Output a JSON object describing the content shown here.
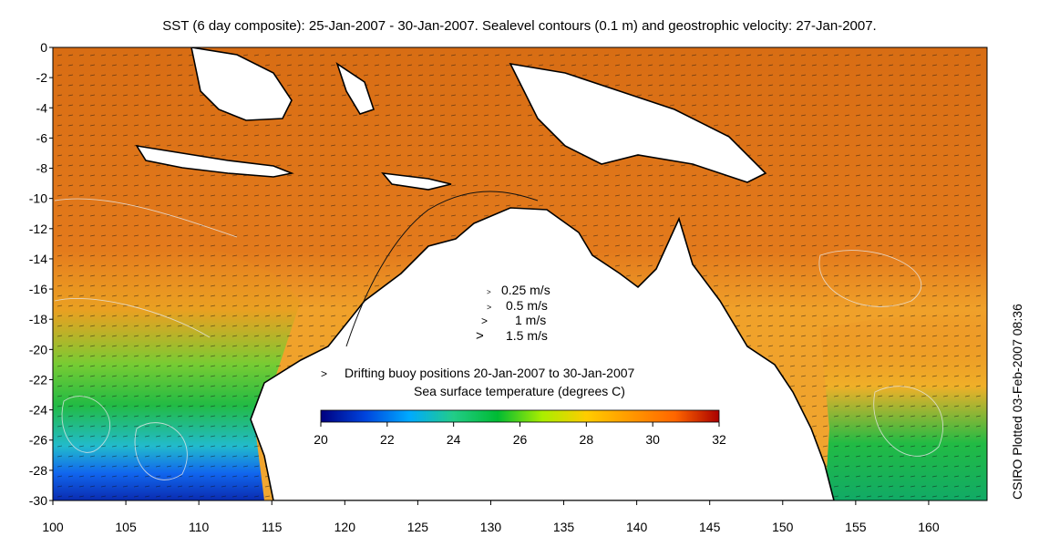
{
  "title": "SST (6 day composite): 25-Jan-2007 - 30-Jan-2007. Sealevel contours (0.1 m) and geostrophic velocity: 27-Jan-2007.",
  "side_label": "CSIRO Plotted 03-Feb-2007 08:36",
  "axes": {
    "lon_min": 100,
    "lon_max": 164,
    "lat_min": -30,
    "lat_max": 0,
    "x_ticks": [
      100,
      105,
      110,
      115,
      120,
      125,
      130,
      135,
      140,
      145,
      150,
      155,
      160
    ],
    "y_ticks": [
      0,
      -2,
      -4,
      -6,
      -8,
      -10,
      -12,
      -14,
      -16,
      -18,
      -20,
      -22,
      -24,
      -26,
      -28,
      -30
    ]
  },
  "velocity_legend": [
    {
      "symbol": ">",
      "label": "0.25 m/s"
    },
    {
      "symbol": ">",
      "label": "0.5 m/s"
    },
    {
      "symbol": ">",
      "label": "1 m/s"
    },
    {
      "symbol": ">",
      "label": "1.5 m/s"
    }
  ],
  "buoy_legend": {
    "symbol": ">",
    "label": "Drifting buoy positions 20-Jan-2007 to 30-Jan-2007",
    "color": "#ff00ff"
  },
  "colorbar": {
    "title": "Sea surface temperature (degrees C)",
    "min": 20,
    "max": 32,
    "ticks": [
      20,
      22,
      24,
      26,
      28,
      30,
      32
    ],
    "colors": [
      "#00007f",
      "#0044dd",
      "#00aaff",
      "#22cc88",
      "#00bb33",
      "#aaee00",
      "#ffcc00",
      "#ff9900",
      "#ff6600",
      "#aa0000"
    ]
  },
  "colors": {
    "land": "#ffffff",
    "warm_sea": "#e8801c",
    "coast": "#000000",
    "contour": "#dddddd"
  }
}
